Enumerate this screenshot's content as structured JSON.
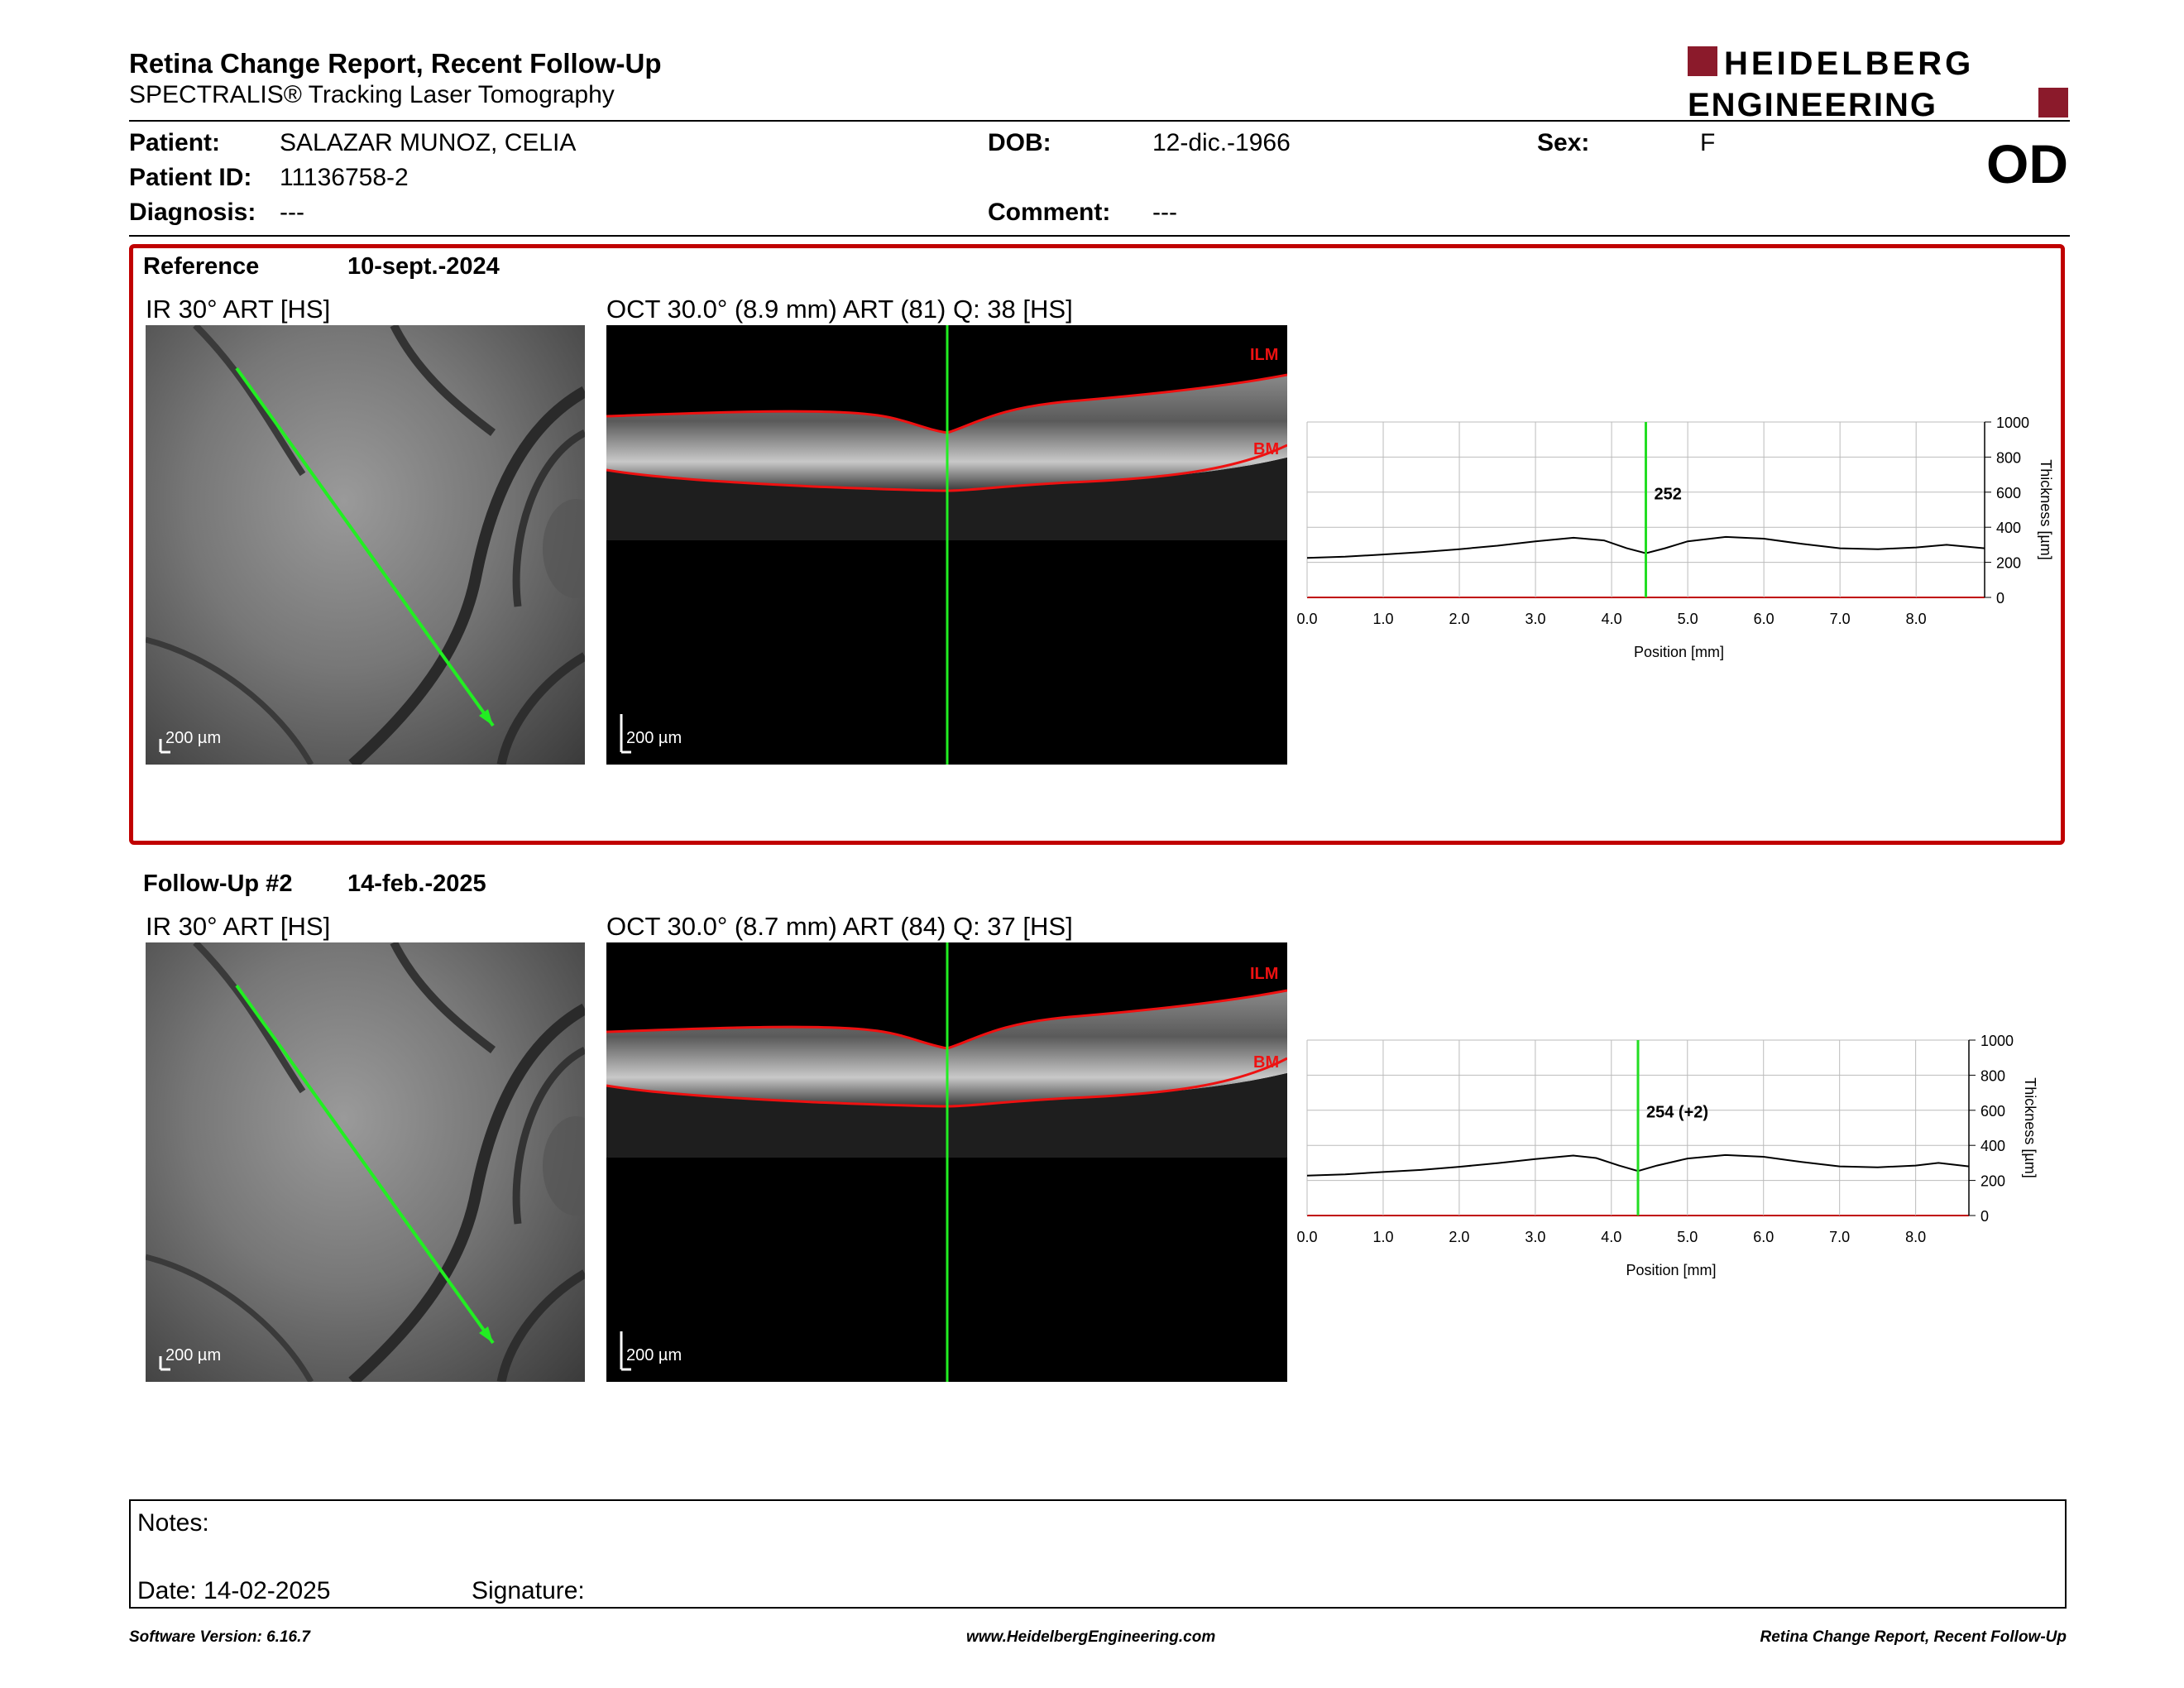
{
  "header": {
    "title": "Retina Change Report, Recent Follow-Up",
    "subtitle": "SPECTRALIS® Tracking Laser Tomography",
    "logo_line1": "HEIDELBERG",
    "logo_line2": "ENGINEERING",
    "eye": "OD"
  },
  "patient": {
    "patient_label": "Patient:",
    "patient_value": "SALAZAR MUNOZ, CELIA",
    "id_label": "Patient ID:",
    "id_value": "11136758-2",
    "diagnosis_label": "Diagnosis:",
    "diagnosis_value": "---",
    "dob_label": "DOB:",
    "dob_value": "12-dic.-1966",
    "comment_label": "Comment:",
    "comment_value": "---",
    "sex_label": "Sex:",
    "sex_value": "F"
  },
  "colors": {
    "accent": "#c00000",
    "scanline": "#22dd22",
    "segmentation": "#dd1111"
  },
  "reference": {
    "label": "Reference",
    "date": "10-sept.-2024",
    "ir_label": "IR 30° ART [HS]",
    "ir_scale": "200 µm",
    "oct_label": "OCT 30.0° (8.9 mm) ART (81) Q: 38 [HS]",
    "oct_scale": "200 µm",
    "ilm": "ILM",
    "bm": "BM"
  },
  "followup": {
    "label": "Follow-Up #2",
    "date": "14-feb.-2025",
    "ir_label": "IR 30° ART [HS]",
    "ir_scale": "200 µm",
    "oct_label": "OCT 30.0° (8.7 mm) ART (84) Q: 37 [HS]",
    "oct_scale": "200 µm",
    "ilm": "ILM",
    "bm": "BM"
  },
  "chart_data": [
    {
      "type": "line",
      "xlabel": "Position [mm]",
      "ylabel": "Thickness [µm]",
      "xlim": [
        0,
        8.9
      ],
      "ylim": [
        0,
        1000
      ],
      "xticks": [
        "0.0",
        "1.0",
        "2.0",
        "3.0",
        "4.0",
        "5.0",
        "6.0",
        "7.0",
        "8.0"
      ],
      "yticks": [
        "0",
        "200",
        "400",
        "600",
        "800",
        "1000"
      ],
      "grid": true,
      "cursor_x": 4.45,
      "cursor_label": "252",
      "x": [
        0,
        0.5,
        1.0,
        1.5,
        2.0,
        2.5,
        3.0,
        3.5,
        3.9,
        4.2,
        4.45,
        4.7,
        5.0,
        5.5,
        6.0,
        6.5,
        7.0,
        7.5,
        8.0,
        8.4,
        8.9
      ],
      "y": [
        225,
        232,
        245,
        258,
        275,
        295,
        320,
        340,
        325,
        280,
        252,
        280,
        320,
        345,
        335,
        305,
        280,
        275,
        285,
        300,
        280
      ]
    },
    {
      "type": "line",
      "xlabel": "Position [mm]",
      "ylabel": "Thickness [µm]",
      "xlim": [
        0,
        8.7
      ],
      "ylim": [
        0,
        1000
      ],
      "xticks": [
        "0.0",
        "1.0",
        "2.0",
        "3.0",
        "4.0",
        "5.0",
        "6.0",
        "7.0",
        "8.0"
      ],
      "yticks": [
        "0",
        "200",
        "400",
        "600",
        "800",
        "1000"
      ],
      "grid": true,
      "cursor_x": 4.35,
      "cursor_label": "254 (+2)",
      "x": [
        0,
        0.5,
        1.0,
        1.5,
        2.0,
        2.5,
        3.0,
        3.5,
        3.8,
        4.1,
        4.35,
        4.6,
        5.0,
        5.5,
        6.0,
        6.5,
        7.0,
        7.5,
        8.0,
        8.3,
        8.7
      ],
      "y": [
        228,
        235,
        248,
        260,
        278,
        298,
        322,
        342,
        328,
        285,
        254,
        285,
        325,
        345,
        335,
        305,
        280,
        275,
        285,
        300,
        280
      ]
    }
  ],
  "notes": {
    "notes_label": "Notes:",
    "date_label": "Date: 14-02-2025",
    "signature_label": "Signature:"
  },
  "footer": {
    "left": "Software Version: 6.16.7",
    "center": "www.HeidelbergEngineering.com",
    "right": "Retina Change Report, Recent Follow-Up"
  }
}
